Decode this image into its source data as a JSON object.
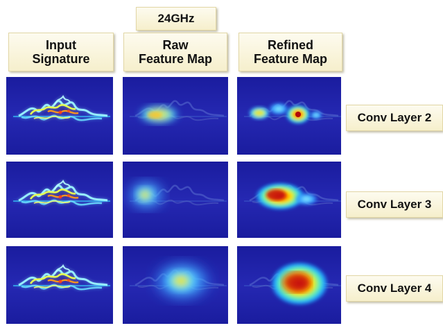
{
  "frequency_label": "24GHz",
  "columns": [
    {
      "line1": "Input",
      "line2": "Signature"
    },
    {
      "line1": "Raw",
      "line2": "Feature Map"
    },
    {
      "line1": "Refined",
      "line2": "Feature Map"
    }
  ],
  "rows": [
    {
      "label": "Conv Layer 2"
    },
    {
      "label": "Conv Layer 3"
    },
    {
      "label": "Conv Layer 4"
    }
  ],
  "colors": {
    "panel_background": "#1d1fa6",
    "label_fill": "#f6efcc",
    "heat_low": "#00bfff",
    "heat_mid": "#ffff00",
    "heat_high": "#d01010"
  }
}
